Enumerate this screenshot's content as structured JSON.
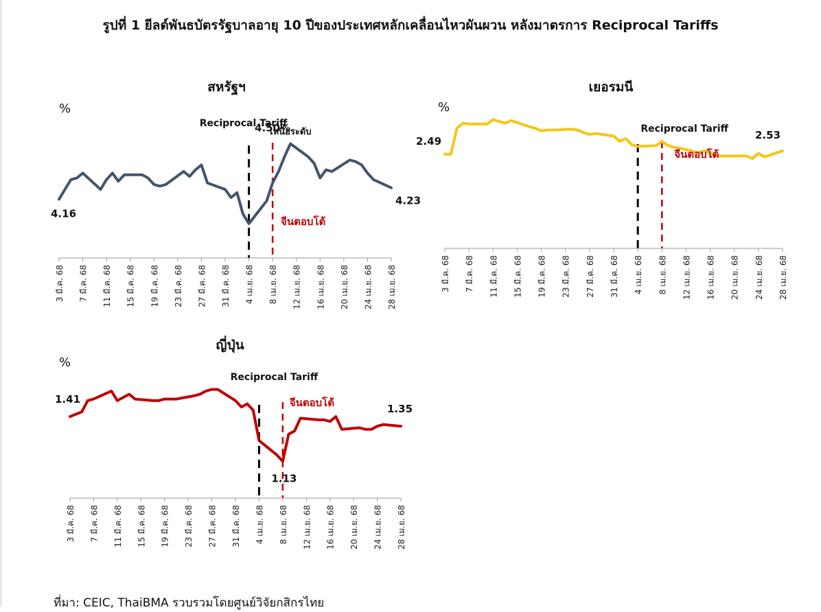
{
  "figure_title": "รูปที่ 1 ยีลด์พันธบัตรรัฐบาลอายุ 10 ปีของประเทศหลักเคลื่อนไหวผันผวน หลังมาตรการ Reciprocal Tariffs",
  "source": "ที่มา: CEIC, ThaiBMA รวบรวมโดยศูนย์วิจัยกสิกรไทย",
  "annotations": {
    "reciprocal_tariff": "Reciprocal Tariff",
    "china_retaliates": "จีนตอบโต้",
    "above_level": "เหนือระดับ"
  },
  "colors": {
    "us": "#44546a",
    "germany": "#f5c518",
    "japan": "#c00000",
    "tariff_line": "#000000",
    "china_line": "#c00000"
  },
  "chart_data": [
    {
      "type": "line",
      "title": "สหรัฐฯ",
      "ylabel": "%",
      "grid": false,
      "ylim": [
        3.8,
        4.75
      ],
      "x_ticks": [
        "3 มี.ค. 68",
        "7 มี.ค. 68",
        "11 มี.ค. 68",
        "15 มี.ค. 68",
        "19 มี.ค. 68",
        "23 มี.ค. 68",
        "27 มี.ค. 68",
        "31 มี.ค. 68",
        "4 เม.ย. 68",
        "8 เม.ย. 68",
        "12 เม.ย. 68",
        "16 เม.ย. 68",
        "20 เม.ย. 68",
        "24 เม.ย. 68",
        "28 เม.ย. 68"
      ],
      "x_start": "2025-03-03",
      "x_end": "2025-04-28",
      "tariff_date": "2025-04-04",
      "china_date": "2025-04-08",
      "series": [
        {
          "x": [
            "2025-03-03",
            "2025-03-05",
            "2025-03-06",
            "2025-03-07",
            "2025-03-10",
            "2025-03-11",
            "2025-03-12",
            "2025-03-13",
            "2025-03-14",
            "2025-03-17",
            "2025-03-18",
            "2025-03-19",
            "2025-03-20",
            "2025-03-21",
            "2025-03-24",
            "2025-03-25",
            "2025-03-26",
            "2025-03-27",
            "2025-03-28",
            "2025-03-31",
            "2025-04-01",
            "2025-04-02",
            "2025-04-03",
            "2025-04-04",
            "2025-04-07",
            "2025-04-08",
            "2025-04-09",
            "2025-04-10",
            "2025-04-11",
            "2025-04-14",
            "2025-04-15",
            "2025-04-16",
            "2025-04-17",
            "2025-04-18",
            "2025-04-21",
            "2025-04-22",
            "2025-04-23",
            "2025-04-24",
            "2025-04-25",
            "2025-04-28"
          ],
          "y": [
            4.16,
            4.28,
            4.29,
            4.32,
            4.22,
            4.28,
            4.32,
            4.27,
            4.31,
            4.31,
            4.29,
            4.25,
            4.24,
            4.25,
            4.33,
            4.3,
            4.34,
            4.37,
            4.26,
            4.22,
            4.17,
            4.2,
            4.07,
            4.01,
            4.15,
            4.26,
            4.33,
            4.42,
            4.5,
            4.42,
            4.38,
            4.29,
            4.34,
            4.33,
            4.4,
            4.39,
            4.37,
            4.32,
            4.28,
            4.23
          ]
        }
      ],
      "labels": {
        "start": "4.16",
        "end": "4.23",
        "peak": "4.50%"
      }
    },
    {
      "type": "line",
      "title": "เยอรมนี",
      "ylabel": "%",
      "grid": false,
      "ylim": [
        1.4,
        3.1
      ],
      "x_ticks": [
        "3 มี.ค. 68",
        "7 มี.ค. 68",
        "11 มี.ค. 68",
        "15 มี.ค. 68",
        "19 มี.ค. 68",
        "23 มี.ค. 68",
        "27 มี.ค. 68",
        "31 มี.ค. 68",
        "4 เม.ย. 68",
        "8 เม.ย. 68",
        "12 เม.ย. 68",
        "16 เม.ย. 68",
        "20 เม.ย. 68",
        "24 เม.ย. 68",
        "28 เม.ย. 68"
      ],
      "x_start": "2025-03-03",
      "x_end": "2025-04-28",
      "tariff_date": "2025-04-04",
      "china_date": "2025-04-08",
      "series": [
        {
          "x": [
            "2025-03-03",
            "2025-03-04",
            "2025-03-05",
            "2025-03-06",
            "2025-03-07",
            "2025-03-10",
            "2025-03-11",
            "2025-03-12",
            "2025-03-13",
            "2025-03-14",
            "2025-03-17",
            "2025-03-18",
            "2025-03-19",
            "2025-03-20",
            "2025-03-21",
            "2025-03-24",
            "2025-03-25",
            "2025-03-26",
            "2025-03-27",
            "2025-03-28",
            "2025-03-31",
            "2025-04-01",
            "2025-04-02",
            "2025-04-03",
            "2025-04-04",
            "2025-04-07",
            "2025-04-08",
            "2025-04-09",
            "2025-04-10",
            "2025-04-11",
            "2025-04-14",
            "2025-04-15",
            "2025-04-16",
            "2025-04-17",
            "2025-04-18",
            "2025-04-21",
            "2025-04-22",
            "2025-04-23",
            "2025-04-24",
            "2025-04-25",
            "2025-04-28"
          ],
          "y": [
            2.49,
            2.49,
            2.79,
            2.85,
            2.84,
            2.84,
            2.89,
            2.87,
            2.85,
            2.88,
            2.81,
            2.79,
            2.76,
            2.77,
            2.77,
            2.78,
            2.77,
            2.74,
            2.72,
            2.73,
            2.7,
            2.64,
            2.67,
            2.6,
            2.58,
            2.59,
            2.64,
            2.59,
            2.57,
            2.56,
            2.51,
            2.53,
            2.5,
            2.47,
            2.47,
            2.47,
            2.47,
            2.44,
            2.5,
            2.46,
            2.53
          ]
        }
      ],
      "labels": {
        "start": "2.49",
        "end": "2.53"
      }
    },
    {
      "type": "line",
      "title": "ญี่ปุ่น",
      "ylabel": "%",
      "grid": false,
      "ylim": [
        0.9,
        1.75
      ],
      "x_ticks": [
        "3 มี.ค. 68",
        "7 มี.ค. 68",
        "11 มี.ค. 68",
        "15 มี.ค. 68",
        "19 มี.ค. 68",
        "23 มี.ค. 68",
        "27 มี.ค. 68",
        "31 มี.ค. 68",
        "4 เม.ย. 68",
        "8 เม.ย. 68",
        "12 เม.ย. 68",
        "16 เม.ย. 68",
        "20 เม.ย. 68",
        "24 เม.ย. 68",
        "28 เม.ย. 68"
      ],
      "x_start": "2025-03-03",
      "x_end": "2025-04-28",
      "tariff_date": "2025-04-04",
      "china_date": "2025-04-08",
      "series": [
        {
          "x": [
            "2025-03-03",
            "2025-03-05",
            "2025-03-06",
            "2025-03-07",
            "2025-03-10",
            "2025-03-11",
            "2025-03-12",
            "2025-03-13",
            "2025-03-14",
            "2025-03-17",
            "2025-03-18",
            "2025-03-19",
            "2025-03-21",
            "2025-03-24",
            "2025-03-25",
            "2025-03-26",
            "2025-03-27",
            "2025-03-28",
            "2025-03-31",
            "2025-04-01",
            "2025-04-02",
            "2025-04-03",
            "2025-04-04",
            "2025-04-07",
            "2025-04-08",
            "2025-04-09",
            "2025-04-10",
            "2025-04-11",
            "2025-04-14",
            "2025-04-15",
            "2025-04-16",
            "2025-04-17",
            "2025-04-18",
            "2025-04-21",
            "2025-04-22",
            "2025-04-23",
            "2025-04-24",
            "2025-04-25",
            "2025-04-28"
          ],
          "y": [
            1.41,
            1.44,
            1.51,
            1.52,
            1.57,
            1.51,
            1.53,
            1.55,
            1.52,
            1.51,
            1.51,
            1.52,
            1.52,
            1.54,
            1.55,
            1.57,
            1.58,
            1.58,
            1.51,
            1.47,
            1.49,
            1.45,
            1.26,
            1.17,
            1.13,
            1.3,
            1.32,
            1.4,
            1.39,
            1.39,
            1.38,
            1.41,
            1.33,
            1.34,
            1.33,
            1.33,
            1.35,
            1.36,
            1.35
          ]
        }
      ],
      "labels": {
        "start": "1.41",
        "end": "1.35",
        "low": "1.13"
      }
    }
  ]
}
